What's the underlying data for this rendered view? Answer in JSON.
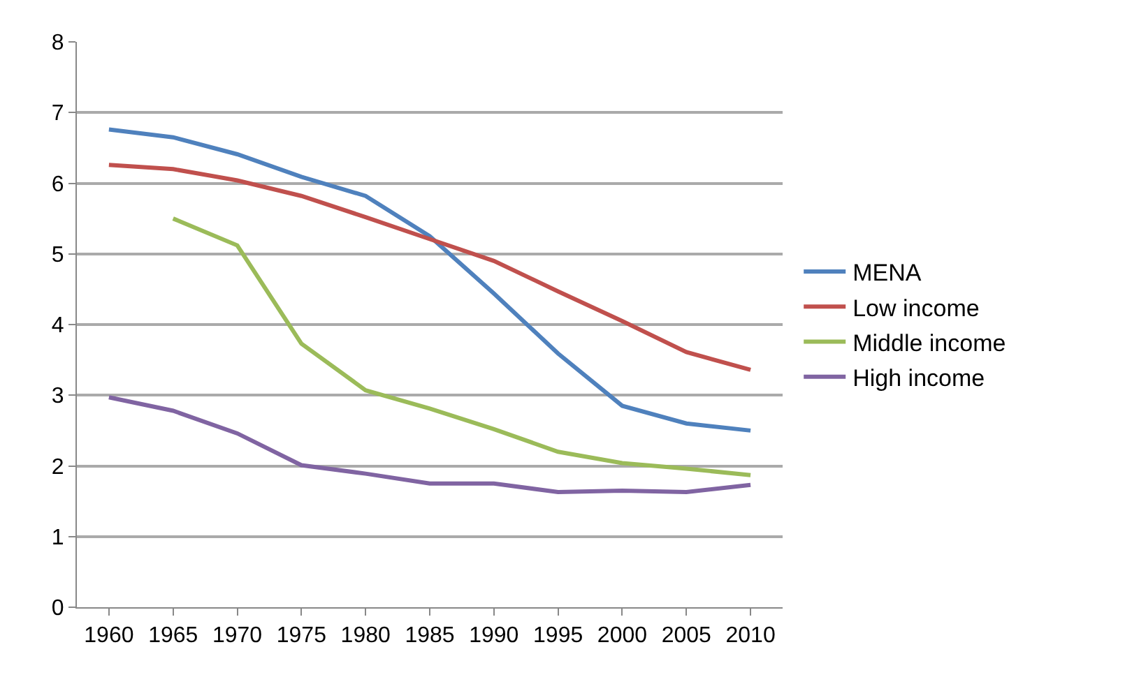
{
  "chart_data": {
    "type": "line",
    "categories": [
      "1960",
      "1965",
      "1970",
      "1975",
      "1980",
      "1985",
      "1990",
      "1995",
      "2000",
      "2005",
      "2010"
    ],
    "series": [
      {
        "name": "MENA",
        "color": "#4f81bd",
        "values": [
          6.76,
          6.65,
          6.41,
          6.09,
          5.82,
          5.25,
          4.44,
          3.59,
          2.85,
          2.6,
          2.5
        ]
      },
      {
        "name": "Low income",
        "color": "#c0504d",
        "values": [
          6.26,
          6.2,
          6.04,
          5.82,
          5.52,
          5.21,
          4.9,
          4.47,
          4.05,
          3.61,
          3.36
        ]
      },
      {
        "name": "Middle income",
        "color": "#9bbb59",
        "values": [
          null,
          5.5,
          5.12,
          3.73,
          3.07,
          2.81,
          2.52,
          2.2,
          2.04,
          1.96,
          1.87
        ]
      },
      {
        "name": "High income",
        "color": "#8064a2",
        "values": [
          2.97,
          2.78,
          2.46,
          2.01,
          1.89,
          1.75,
          1.75,
          1.63,
          1.65,
          1.63,
          1.73
        ]
      }
    ],
    "ylim": [
      0,
      8
    ],
    "yticks": [
      0,
      1,
      2,
      3,
      4,
      5,
      6,
      7,
      8
    ],
    "grid": "y",
    "legend": "right",
    "marker": "none",
    "line_style": "solid"
  }
}
